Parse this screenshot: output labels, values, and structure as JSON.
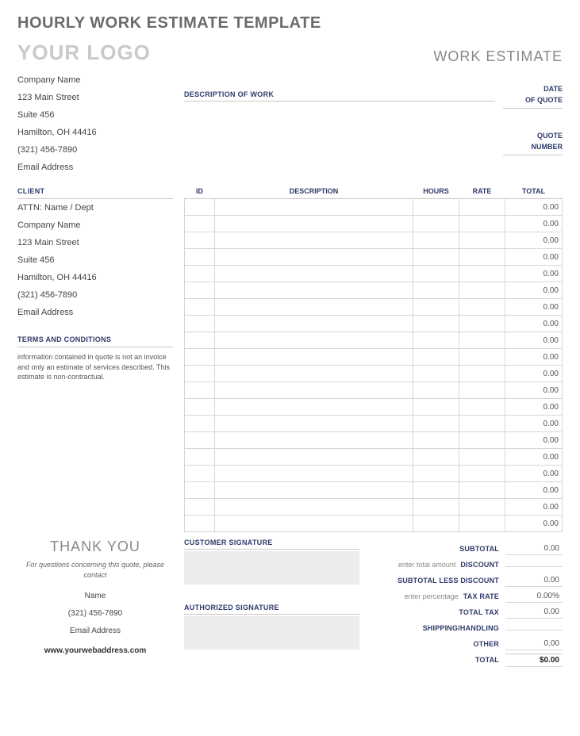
{
  "page_title": "HOURLY WORK ESTIMATE TEMPLATE",
  "logo_text": "YOUR LOGO",
  "doc_type": "WORK ESTIMATE",
  "company": {
    "name": "Company Name",
    "street": "123 Main Street",
    "suite": "Suite 456",
    "city": "Hamilton, OH  44416",
    "phone": "(321) 456-7890",
    "email": "Email Address"
  },
  "labels": {
    "desc_of_work": "DESCRIPTION OF WORK",
    "date": "DATE",
    "of_quote": "OF QUOTE",
    "quote": "QUOTE",
    "number": "NUMBER",
    "client": "CLIENT",
    "terms": "TERMS AND CONDITIONS",
    "id": "ID",
    "description": "DESCRIPTION",
    "hours": "HOURS",
    "rate": "RATE",
    "total": "TOTAL",
    "customer_sig": "CUSTOMER SIGNATURE",
    "authorized_sig": "AUTHORIZED SIGNATURE",
    "thank_you": "THANK YOU"
  },
  "client": {
    "attn": "ATTN: Name / Dept",
    "company": "Company Name",
    "street": "123 Main Street",
    "suite": "Suite 456",
    "city": "Hamilton, OH  44416",
    "phone": "(321) 456-7890",
    "email": "Email Address"
  },
  "terms_text": "information contained in quote is not an invoice and only an estimate of services described. This estimate is non-contractual.",
  "row_total": "0.00",
  "row_count": 20,
  "totals": {
    "subtotal_label": "SUBTOTAL",
    "subtotal": "0.00",
    "discount_hint": "enter total amount",
    "discount_label": "DISCOUNT",
    "discount": "",
    "less_label": "SUBTOTAL LESS DISCOUNT",
    "less": "0.00",
    "taxrate_hint": "enter percentage",
    "taxrate_label": "TAX RATE",
    "taxrate": "0.00%",
    "totaltax_label": "TOTAL TAX",
    "totaltax": "0.00",
    "shipping_label": "SHIPPING/HANDLING",
    "shipping": "",
    "other_label": "OTHER",
    "other": "0.00",
    "total_label": "TOTAL",
    "total": "$0.00"
  },
  "thanks": {
    "text": "For questions concerning this quote, please contact",
    "name": "Name",
    "phone": "(321) 456-7890",
    "email": "Email Address",
    "web": "www.yourwebaddress.com"
  },
  "colors": {
    "accent": "#2e3a6b",
    "muted": "#888888",
    "border": "#d6d6d6"
  }
}
